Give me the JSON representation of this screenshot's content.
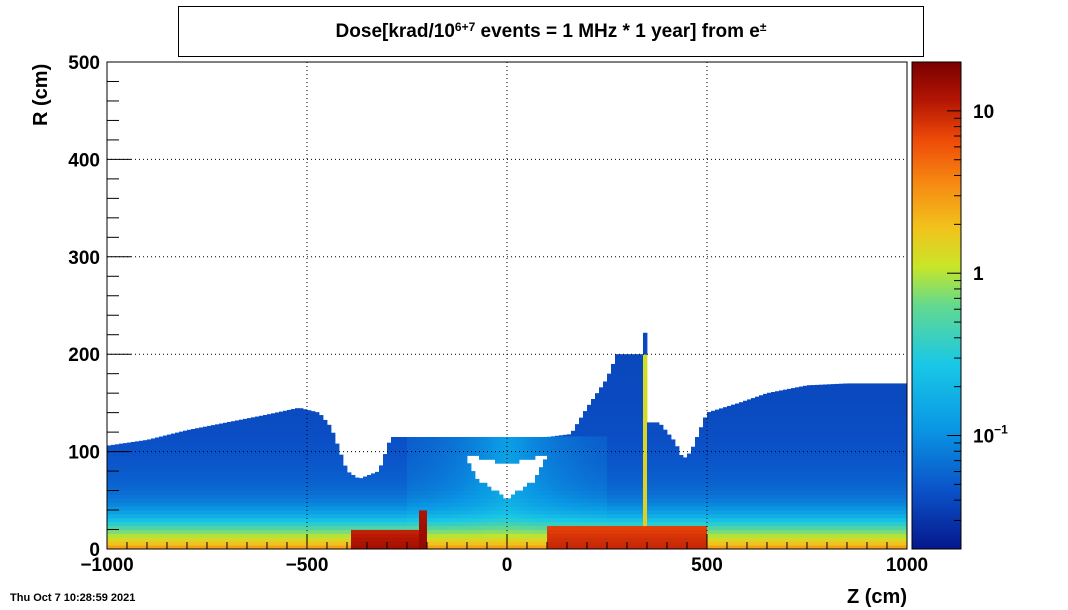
{
  "title_parts": {
    "prefix": "Dose[krad/10",
    "exponent": "6+7",
    "middle": " events = 1 MHz * 1 year] from e",
    "superscript": "±"
  },
  "timestamp": "Thu Oct  7 10:28:59 2021",
  "colors": {
    "palette": [
      "#06188c",
      "#0b52c8",
      "#0a98e4",
      "#19c8e6",
      "#63d98f",
      "#c8e628",
      "#f2c21c",
      "#f68a12",
      "#ee4a08",
      "#b41604",
      "#7a0000"
    ]
  },
  "chart_data": {
    "type": "heatmap",
    "xlabel": "Z (cm)",
    "ylabel": "R (cm)",
    "xlim": [
      -1000,
      1000
    ],
    "ylim": [
      0,
      500
    ],
    "x_ticks": [
      -1000,
      -500,
      0,
      500,
      1000
    ],
    "x_tick_labels": [
      "−1000",
      "−500",
      "0",
      "500",
      "1000"
    ],
    "y_ticks": [
      0,
      100,
      200,
      300,
      400,
      500
    ],
    "y_tick_labels": [
      "0",
      "100",
      "200",
      "300",
      "400",
      "500"
    ],
    "grid": true,
    "colorbar": {
      "scale": "log",
      "range": [
        0.02,
        20
      ],
      "tick_values": [
        10,
        1,
        0.1
      ],
      "tick_labels": [
        {
          "base": "10",
          "exp": ""
        },
        {
          "base": "1",
          "exp": ""
        },
        {
          "base": "10",
          "exp": "−1"
        }
      ]
    },
    "envelope": [
      [
        -1000,
        106
      ],
      [
        -900,
        112
      ],
      [
        -800,
        122
      ],
      [
        -700,
        130
      ],
      [
        -600,
        138
      ],
      [
        -520,
        145
      ],
      [
        -470,
        140
      ],
      [
        -440,
        125
      ],
      [
        -400,
        80
      ],
      [
        -370,
        72
      ],
      [
        -320,
        80
      ],
      [
        -290,
        115
      ],
      [
        -200,
        115
      ],
      [
        -100,
        115
      ],
      [
        0,
        115
      ],
      [
        100,
        115
      ],
      [
        160,
        118
      ],
      [
        200,
        145
      ],
      [
        250,
        175
      ],
      [
        275,
        200
      ],
      [
        340,
        200
      ],
      [
        345,
        222
      ],
      [
        348,
        130
      ],
      [
        380,
        130
      ],
      [
        420,
        110
      ],
      [
        440,
        92
      ],
      [
        460,
        100
      ],
      [
        500,
        140
      ],
      [
        580,
        150
      ],
      [
        650,
        160
      ],
      [
        750,
        168
      ],
      [
        850,
        170
      ],
      [
        1000,
        170
      ]
    ],
    "hole": [
      [
        -105,
        98
      ],
      [
        -30,
        90
      ],
      [
        0,
        88
      ],
      [
        30,
        90
      ],
      [
        105,
        98
      ],
      [
        70,
        70
      ],
      [
        30,
        60
      ],
      [
        0,
        50
      ],
      [
        -30,
        60
      ],
      [
        -70,
        70
      ]
    ],
    "hot_regions": [
      {
        "zmin": -390,
        "zmax": -200,
        "rmin": 2,
        "rmax": 18,
        "dose": 12
      },
      {
        "zmin": 100,
        "zmax": 500,
        "rmin": 2,
        "rmax": 22,
        "dose": 8
      },
      {
        "zmin": -215,
        "zmax": -200,
        "rmin": 2,
        "rmax": 40,
        "dose": 15
      },
      {
        "zmin": 340,
        "zmax": 350,
        "rmin": 20,
        "rmax": 200,
        "dose": 1
      }
    ]
  }
}
